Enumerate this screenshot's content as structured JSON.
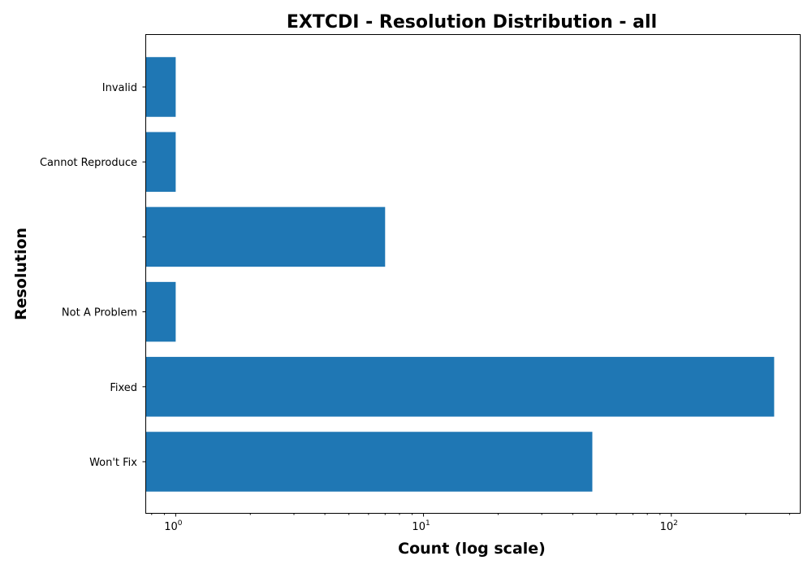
{
  "chart_data": {
    "type": "bar",
    "orientation": "horizontal",
    "title": "EXTCDI - Resolution Distribution - all",
    "xlabel": "Count (log scale)",
    "ylabel": "Resolution",
    "x_scale": "log",
    "xlim": [
      0.76,
      330
    ],
    "x_ticks": [
      {
        "value": 1,
        "base": "10",
        "exp": "0"
      },
      {
        "value": 10,
        "base": "10",
        "exp": "1"
      },
      {
        "value": 100,
        "base": "10",
        "exp": "2"
      }
    ],
    "categories": [
      "Won't Fix",
      "Fixed",
      "Not A Problem",
      "",
      "Cannot Reproduce",
      "Invalid"
    ],
    "values": [
      48,
      260,
      1,
      7,
      1,
      1
    ],
    "bar_color": "#1f77b4",
    "grid": false
  }
}
